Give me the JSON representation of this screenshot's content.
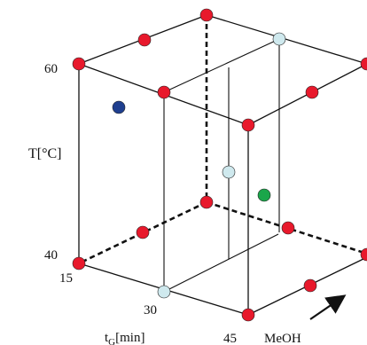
{
  "axes": {
    "temperature": {
      "label": "T[°C]",
      "ticks": [
        "60",
        "40"
      ]
    },
    "gradient_time": {
      "label": "tG[min]",
      "label_main": "t",
      "label_sub": "G",
      "label_unit": "[min]",
      "ticks": [
        "15",
        "30",
        "45"
      ]
    },
    "methanol": {
      "label": "MeOH"
    }
  },
  "colors": {
    "design_point": "#e8192c",
    "center_point": "#cfe9ee",
    "extra_point_blue": "#1f3f8f",
    "extra_point_green": "#1aa64a",
    "edge": "#111111"
  },
  "direction_arrow": "arrow-up-right"
}
